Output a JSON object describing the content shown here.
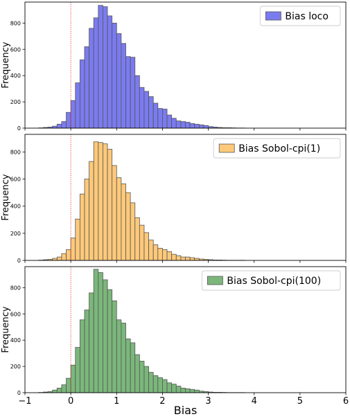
{
  "chart_data": {
    "type": "histogram",
    "xlabel": "Bias",
    "xlim": [
      -1,
      6
    ],
    "x_ticks": [
      "−1",
      "0",
      "1",
      "2",
      "3",
      "4",
      "5",
      "6"
    ],
    "x_tick_values": [
      -1,
      0,
      1,
      2,
      3,
      4,
      5,
      6
    ],
    "reference_line": {
      "x": 0,
      "color": "#e8302a",
      "style": "dotted"
    },
    "bin_start": -0.7,
    "bin_width": 0.1,
    "panels": [
      {
        "series_name": "Bias loco",
        "color": "#7b7bf0",
        "ylabel": "Frequency",
        "ylim": [
          0,
          960
        ],
        "y_ticks": [
          0,
          200,
          400,
          600,
          800
        ],
        "legend_position": "top-right",
        "values": [
          2,
          5,
          8,
          15,
          30,
          50,
          120,
          210,
          345,
          520,
          620,
          760,
          840,
          935,
          925,
          855,
          800,
          720,
          645,
          545,
          540,
          400,
          310,
          280,
          240,
          190,
          150,
          145,
          100,
          75,
          55,
          50,
          45,
          35,
          30,
          25,
          20,
          12,
          8,
          5,
          3,
          3,
          2,
          1,
          1
        ]
      },
      {
        "series_name": "Bias Sobol-cpi(1)",
        "color": "#fdc97a",
        "ylabel": "Frequency",
        "ylim": [
          0,
          930
        ],
        "y_ticks": [
          0,
          200,
          400,
          600,
          800
        ],
        "legend_position": "top-right",
        "values": [
          2,
          5,
          8,
          15,
          25,
          50,
          80,
          165,
          305,
          490,
          600,
          730,
          875,
          870,
          860,
          820,
          700,
          610,
          565,
          500,
          425,
          315,
          260,
          205,
          150,
          115,
          90,
          80,
          65,
          45,
          35,
          25,
          25,
          20,
          15,
          10,
          8,
          5,
          3,
          3,
          2,
          1,
          1,
          1,
          1
        ]
      },
      {
        "series_name": "Bias Sobol-cpi(100)",
        "color": "#7bb77b",
        "ylabel": "Frequency",
        "ylim": [
          0,
          960
        ],
        "y_ticks": [
          0,
          200,
          400,
          600,
          800
        ],
        "legend_position": "top-right",
        "values": [
          2,
          5,
          8,
          20,
          35,
          60,
          110,
          210,
          345,
          555,
          630,
          760,
          940,
          915,
          860,
          785,
          700,
          555,
          530,
          410,
          380,
          290,
          240,
          200,
          155,
          130,
          115,
          100,
          75,
          65,
          50,
          35,
          30,
          25,
          20,
          12,
          8,
          5,
          3,
          3,
          2,
          1,
          1,
          1,
          1
        ]
      }
    ]
  }
}
